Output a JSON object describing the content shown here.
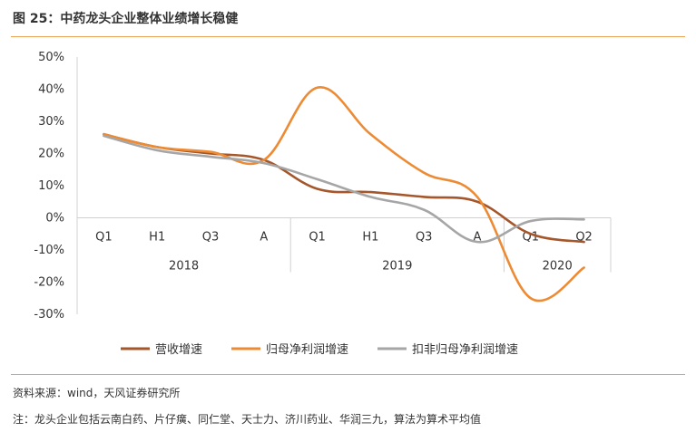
{
  "figure": {
    "title": "图 25：中药龙头企业整体业绩增长稳健",
    "source": "资料来源：wind，天风证券研究所",
    "note": "注：龙头企业包括云南白药、片仔癀、同仁堂、天士力、济川药业、华润三九，算法为算术平均值"
  },
  "chart_data": {
    "type": "line",
    "title": "",
    "ylim": [
      -30,
      50
    ],
    "yticks": [
      -30,
      -20,
      -10,
      0,
      10,
      20,
      30,
      40,
      50
    ],
    "ytick_labels": [
      "-30%",
      "-20%",
      "-10%",
      "0%",
      "10%",
      "20%",
      "30%",
      "40%",
      "50%"
    ],
    "categories": [
      "Q1",
      "H1",
      "Q3",
      "A",
      "Q1",
      "H1",
      "Q3",
      "A",
      "Q1",
      "Q2"
    ],
    "groups": [
      {
        "label": "2018",
        "start": 0,
        "end": 3
      },
      {
        "label": "2019",
        "start": 4,
        "end": 7
      },
      {
        "label": "2020",
        "start": 8,
        "end": 9
      }
    ],
    "series": [
      {
        "name": "营收增速",
        "color": "#a5562a",
        "values": [
          26,
          22,
          20,
          18,
          9,
          8,
          6.5,
          5,
          -5,
          -7.5
        ]
      },
      {
        "name": "归母净利润增速",
        "color": "#ed8b34",
        "values": [
          26,
          22,
          20.5,
          18,
          40.5,
          26,
          14,
          6.5,
          -25,
          -15.5
        ]
      },
      {
        "name": "扣非归母净利润增速",
        "color": "#a6a6a6",
        "values": [
          25.5,
          21,
          19,
          17,
          12,
          6.5,
          2.5,
          -7.5,
          -1,
          -0.5
        ]
      }
    ],
    "legend_position": "bottom",
    "grid": false
  }
}
